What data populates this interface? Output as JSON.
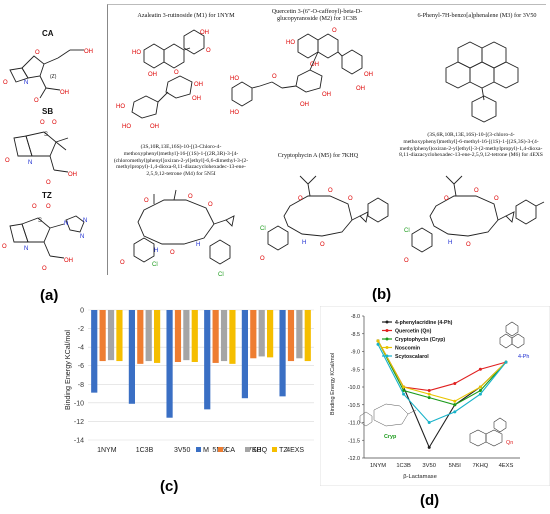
{
  "panel_a": {
    "label": "(a)",
    "molecules": [
      {
        "name": "CA",
        "atoms": {
          "o1": "O",
          "oh": "OH",
          "n": "N",
          "o2": "O",
          "z": "(Z)",
          "oh2": "OH",
          "o3": "O"
        }
      },
      {
        "name": "SB",
        "atoms": {
          "o1": "O",
          "o2": "O",
          "s": "S",
          "n": "N",
          "o3": "O",
          "oh": "OH",
          "o4": "O"
        }
      },
      {
        "name": "TZ",
        "atoms": {
          "o1": "O",
          "o2": "O",
          "s": "S",
          "n1": "N",
          "n2": "N",
          "n3": "N",
          "n4": "N",
          "o3": "O",
          "oh": "OH",
          "o4": "O"
        }
      }
    ]
  },
  "panel_b": {
    "label": "(b)",
    "compounds": [
      {
        "title": "Azaleatin 3-rutinoside (M1) for 1NYM"
      },
      {
        "title": "Quercetin 3-(6\"-O-caffeoyl)-beta-D-glucopyranoside (M2) for 1C3B"
      },
      {
        "title": "6-Phenyl-7H-benzo[a]phenalene (M3) for 3V50"
      },
      {
        "title": "(3S,10R,13E,16S)-10-[(3-Chloro-4-methoxyphenyl)methyl]-16-[(1S)-1-[(2R,3R)-3-[4-(chloromethyl)phenyl]oxiran-2-yl]ethyl]-6,6-dimethyl-3-(2-methylpropyl)-1,4-dioxa-8,11-diazacyclohexadec-13-ene-2,5,9,12-tetrone (M4) for 5N5I"
      },
      {
        "title": "Cryptophycin A (M5) for 7KHQ"
      },
      {
        "title": "(3S,6R,10R,13E,16S)-10-[(3-chloro-4-methoxyphenyl)methyl]-6-methyl-16-[(1S)-1-[(2S,3S)-3-(4-methylphenyl)oxiran-2-yl]ethyl]-3-(2-methylpropyl)-1,4-dioxa-8,11-diazacyclohexadec-13-ene-2,5,9,12-tetrone (M6) for 4EXS"
      }
    ]
  },
  "panel_c": {
    "label": "(c)",
    "chart_data": {
      "type": "bar",
      "ylabel": "Binding Energy KCal/mol",
      "ylim": [
        -14,
        0
      ],
      "yticks": [
        "0",
        "-2",
        "-4",
        "-6",
        "-8",
        "-10",
        "-12",
        "-14"
      ],
      "categories": [
        "1NYM",
        "1C3B",
        "3V50",
        "5N5I",
        "7KHQ",
        "4EXS"
      ],
      "series": [
        {
          "name": "M",
          "color": "#3a6fc4",
          "values": [
            -8.9,
            -10.1,
            -11.6,
            -10.7,
            -9.5,
            -9.3
          ]
        },
        {
          "name": "CA",
          "color": "#ee7d31",
          "values": [
            -5.5,
            -5.8,
            -5.6,
            -5.7,
            -5.2,
            -5.5
          ]
        },
        {
          "name": "SB",
          "color": "#a5a5a5",
          "values": [
            -5.4,
            -5.5,
            -5.4,
            -5.5,
            -5.0,
            -5.2
          ]
        },
        {
          "name": "TZ",
          "color": "#f5be00",
          "values": [
            -5.5,
            -5.7,
            -5.6,
            -5.8,
            -5.1,
            -5.5
          ]
        }
      ]
    }
  },
  "panel_d": {
    "label": "(d)",
    "chart_data": {
      "type": "line",
      "xlabel": "β-Lactamase",
      "ylabel": "Binding Energy KCal/mol",
      "ylim": [
        -12.0,
        -8.0
      ],
      "yticks": [
        "-8.0",
        "-8.5",
        "-9.0",
        "-9.5",
        "-10.0",
        "-10.5",
        "-11.0",
        "-11.5",
        "-12.0"
      ],
      "categories": [
        "1NYM",
        "1C3B",
        "3V50",
        "5N5I",
        "7KHQ",
        "4EXS"
      ],
      "series": [
        {
          "name": "4-phenylacridine (4-Ph)",
          "color": "#1f1f1f",
          "values": [
            -8.7,
            -10.0,
            -11.7,
            -10.5,
            -10.0,
            -9.3
          ]
        },
        {
          "name": "Quercetin (Qn)",
          "color": "#e02020",
          "values": [
            -8.7,
            -10.0,
            -10.1,
            -9.9,
            -9.5,
            -9.3
          ]
        },
        {
          "name": "Cryptophycin (Cryp)",
          "color": "#1a9a1a",
          "values": [
            -8.7,
            -10.1,
            -10.3,
            -10.5,
            -10.1,
            -9.3
          ]
        },
        {
          "name": "Noscomin",
          "color": "#e8c400",
          "values": [
            -8.7,
            -10.0,
            -10.2,
            -10.4,
            -10.0,
            -9.3
          ]
        },
        {
          "name": "Scytoscalarol",
          "color": "#17b2c9",
          "values": [
            -8.8,
            -10.2,
            -11.0,
            -10.7,
            -10.2,
            -9.3
          ]
        }
      ],
      "annotations": {
        "ph": "4-Ph",
        "qn": "Qn",
        "cryp": "Cryp"
      }
    }
  }
}
